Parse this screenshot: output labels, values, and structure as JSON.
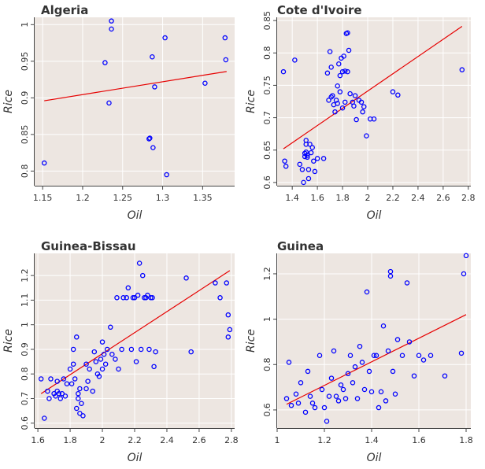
{
  "chart_data": [
    {
      "type": "scatter",
      "title": "Algeria",
      "xlabel": "Oil",
      "ylabel": "Rice",
      "xlim": [
        1.14,
        1.39
      ],
      "ylim": [
        0.78,
        1.01
      ],
      "xticks": [
        1.15,
        1.2,
        1.25,
        1.3,
        1.35
      ],
      "xtick_labels": [
        "1.15",
        "1.2",
        "1.25",
        "1.3",
        "1.35"
      ],
      "yticks": [
        0.8,
        0.85,
        0.9,
        0.95,
        1.0
      ],
      "ytick_labels": [
        "0.8",
        "0.85",
        "0.9",
        "0.95",
        "1"
      ],
      "grid": true,
      "points": {
        "x": [
          1.152,
          1.228,
          1.233,
          1.236,
          1.236,
          1.283,
          1.284,
          1.287,
          1.288,
          1.29,
          1.303,
          1.305,
          1.353,
          1.378,
          1.379
        ],
        "y": [
          0.811,
          0.948,
          0.893,
          1.005,
          0.994,
          0.844,
          0.845,
          0.956,
          0.832,
          0.915,
          0.982,
          0.795,
          0.92,
          0.982,
          0.952
        ]
      },
      "fit_line": {
        "x": [
          1.152,
          1.38
        ],
        "y": [
          0.896,
          0.936
        ]
      },
      "colors": {
        "points": "#0000ff",
        "fit": "#e60000",
        "background": "#ede6e1",
        "grid": "#ffffff"
      }
    },
    {
      "type": "scatter",
      "title": "Cote d'Ivoire",
      "xlabel": "Oil",
      "ylabel": "Rice",
      "xlim": [
        1.28,
        2.82
      ],
      "ylim": [
        0.595,
        0.855
      ],
      "xticks": [
        1.4,
        1.6,
        1.8,
        2.0,
        2.2,
        2.4,
        2.6,
        2.8
      ],
      "xtick_labels": [
        "1.4",
        "1.6",
        "1.8",
        "2",
        "2.2",
        "2.4",
        "2.6",
        "2.8"
      ],
      "yticks": [
        0.6,
        0.65,
        0.7,
        0.75,
        0.8,
        0.85
      ],
      "ytick_labels": [
        "0.6",
        "0.65",
        "0.7",
        "0.75",
        "0.8",
        "0.85"
      ],
      "grid": true,
      "points": {
        "x": [
          1.33,
          1.34,
          1.35,
          1.42,
          1.46,
          1.48,
          1.49,
          1.5,
          1.5,
          1.51,
          1.51,
          1.51,
          1.52,
          1.52,
          1.53,
          1.53,
          1.54,
          1.55,
          1.56,
          1.57,
          1.58,
          1.6,
          1.65,
          1.68,
          1.69,
          1.7,
          1.71,
          1.71,
          1.72,
          1.73,
          1.74,
          1.75,
          1.76,
          1.76,
          1.77,
          1.78,
          1.78,
          1.79,
          1.8,
          1.8,
          1.81,
          1.82,
          1.82,
          1.83,
          1.84,
          1.84,
          1.85,
          1.86,
          1.88,
          1.89,
          1.9,
          1.91,
          1.93,
          1.95,
          1.96,
          1.97,
          1.99,
          2.02,
          2.05,
          2.2,
          2.24,
          2.75
        ],
        "y": [
          0.771,
          0.633,
          0.625,
          0.789,
          0.628,
          0.62,
          0.6,
          0.645,
          0.64,
          0.665,
          0.659,
          0.647,
          0.642,
          0.639,
          0.62,
          0.606,
          0.659,
          0.646,
          0.654,
          0.633,
          0.617,
          0.637,
          0.637,
          0.769,
          0.727,
          0.802,
          0.778,
          0.732,
          0.734,
          0.72,
          0.709,
          0.727,
          0.722,
          0.749,
          0.783,
          0.74,
          0.765,
          0.792,
          0.771,
          0.715,
          0.795,
          0.772,
          0.724,
          0.83,
          0.831,
          0.771,
          0.804,
          0.737,
          0.724,
          0.718,
          0.734,
          0.697,
          0.727,
          0.724,
          0.709,
          0.717,
          0.672,
          0.698,
          0.698,
          0.74,
          0.735,
          0.774
        ]
      },
      "fit_line": {
        "x": [
          1.33,
          2.75
        ],
        "y": [
          0.652,
          0.841
        ]
      },
      "colors": {
        "points": "#0000ff",
        "fit": "#e60000",
        "background": "#ede6e1",
        "grid": "#ffffff"
      }
    },
    {
      "type": "scatter",
      "title": "Guinea-Bissau",
      "xlabel": "Oil",
      "ylabel": "Rice",
      "xlim": [
        1.58,
        2.82
      ],
      "ylim": [
        0.58,
        1.29
      ],
      "xticks": [
        1.6,
        1.8,
        2.0,
        2.2,
        2.4,
        2.6,
        2.8
      ],
      "xtick_labels": [
        "1.6",
        "1.8",
        "2",
        "2.2",
        "2.4",
        "2.6",
        "2.8"
      ],
      "yticks": [
        0.6,
        0.7,
        0.8,
        0.9,
        1.0,
        1.1,
        1.2
      ],
      "ytick_labels": [
        "0.6",
        "0.7",
        "0.8",
        "0.9",
        "1",
        "1.1",
        "1.2"
      ],
      "grid": true,
      "points": {
        "x": [
          1.62,
          1.64,
          1.66,
          1.67,
          1.68,
          1.7,
          1.71,
          1.72,
          1.72,
          1.73,
          1.74,
          1.75,
          1.76,
          1.77,
          1.78,
          1.8,
          1.81,
          1.82,
          1.82,
          1.83,
          1.84,
          1.84,
          1.85,
          1.85,
          1.86,
          1.86,
          1.87,
          1.88,
          1.9,
          1.9,
          1.91,
          1.92,
          1.94,
          1.95,
          1.96,
          1.97,
          1.98,
          1.99,
          2.0,
          2.0,
          2.01,
          2.02,
          2.03,
          2.05,
          2.06,
          2.08,
          2.09,
          2.1,
          2.12,
          2.13,
          2.15,
          2.16,
          2.18,
          2.19,
          2.2,
          2.21,
          2.22,
          2.23,
          2.24,
          2.25,
          2.26,
          2.27,
          2.28,
          2.29,
          2.3,
          2.31,
          2.32,
          2.33,
          2.52,
          2.55,
          2.7,
          2.73,
          2.77,
          2.78,
          2.78,
          2.79
        ],
        "y": [
          0.78,
          0.62,
          0.73,
          0.7,
          0.78,
          0.72,
          0.71,
          0.77,
          0.73,
          0.72,
          0.7,
          0.72,
          0.78,
          0.71,
          0.76,
          0.82,
          0.76,
          0.84,
          0.9,
          0.78,
          0.95,
          0.66,
          0.72,
          0.7,
          0.74,
          0.64,
          0.68,
          0.63,
          0.84,
          0.74,
          0.77,
          0.82,
          0.73,
          0.89,
          0.85,
          0.8,
          0.79,
          0.86,
          0.82,
          0.93,
          0.88,
          0.84,
          0.9,
          0.99,
          0.88,
          0.86,
          1.11,
          0.82,
          0.9,
          1.11,
          1.11,
          1.15,
          0.9,
          1.11,
          1.11,
          0.85,
          1.12,
          1.25,
          0.9,
          1.2,
          1.11,
          1.11,
          1.12,
          0.9,
          1.11,
          1.11,
          0.83,
          0.89,
          1.19,
          0.89,
          1.17,
          1.11,
          1.17,
          1.04,
          0.95,
          0.98
        ]
      },
      "fit_line": {
        "x": [
          1.62,
          2.79
        ],
        "y": [
          0.72,
          1.22
        ]
      },
      "colors": {
        "points": "#0000ff",
        "fit": "#e60000",
        "background": "#ede6e1",
        "grid": "#ffffff"
      }
    },
    {
      "type": "scatter",
      "title": "Guinea",
      "xlabel": "Oil",
      "ylabel": "Rice",
      "xlim": [
        1.0,
        1.82
      ],
      "ylim": [
        0.52,
        1.29
      ],
      "xticks": [
        1.0,
        1.2,
        1.4,
        1.6,
        1.8
      ],
      "xtick_labels": [
        "1",
        "1.2",
        "1.4",
        "1.6",
        "1.8"
      ],
      "yticks": [
        0.6,
        0.8,
        1.0,
        1.2
      ],
      "ytick_labels": [
        "0.6",
        "0.8",
        "1",
        "1.2"
      ],
      "grid": true,
      "points": {
        "x": [
          1.04,
          1.05,
          1.06,
          1.08,
          1.09,
          1.1,
          1.12,
          1.13,
          1.14,
          1.15,
          1.16,
          1.18,
          1.19,
          1.2,
          1.21,
          1.22,
          1.23,
          1.24,
          1.25,
          1.26,
          1.27,
          1.28,
          1.29,
          1.3,
          1.31,
          1.32,
          1.33,
          1.34,
          1.35,
          1.36,
          1.37,
          1.38,
          1.39,
          1.4,
          1.41,
          1.42,
          1.43,
          1.44,
          1.45,
          1.46,
          1.47,
          1.48,
          1.48,
          1.49,
          1.5,
          1.51,
          1.53,
          1.55,
          1.56,
          1.58,
          1.6,
          1.62,
          1.65,
          1.71,
          1.78,
          1.79,
          1.8
        ],
        "y": [
          0.65,
          0.81,
          0.62,
          0.67,
          0.63,
          0.72,
          0.59,
          0.77,
          0.66,
          0.63,
          0.61,
          0.84,
          0.69,
          0.61,
          0.55,
          0.66,
          0.74,
          0.86,
          0.66,
          0.64,
          0.71,
          0.69,
          0.65,
          0.76,
          0.84,
          0.72,
          0.79,
          0.65,
          0.88,
          0.81,
          0.69,
          1.12,
          0.77,
          0.68,
          0.84,
          0.84,
          0.61,
          0.68,
          0.97,
          0.64,
          0.86,
          1.19,
          1.21,
          0.77,
          0.67,
          0.91,
          0.84,
          1.16,
          0.9,
          0.75,
          0.84,
          0.82,
          0.84,
          0.75,
          0.85,
          1.2,
          1.28
        ]
      },
      "fit_line": {
        "x": [
          1.04,
          1.8
        ],
        "y": [
          0.625,
          1.02
        ]
      },
      "colors": {
        "points": "#0000ff",
        "fit": "#e60000",
        "background": "#ede6e1",
        "grid": "#ffffff"
      }
    }
  ]
}
